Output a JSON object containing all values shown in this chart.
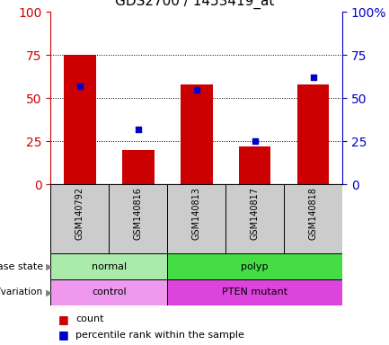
{
  "title": "GDS2700 / 1453419_at",
  "samples": [
    "GSM140792",
    "GSM140816",
    "GSM140813",
    "GSM140817",
    "GSM140818"
  ],
  "counts": [
    75,
    20,
    58,
    22,
    58
  ],
  "percentiles": [
    57,
    32,
    55,
    25,
    62
  ],
  "ylim_left": [
    0,
    100
  ],
  "ylim_right": [
    0,
    100
  ],
  "left_yticks": [
    0,
    25,
    50,
    75,
    100
  ],
  "right_yticks": [
    0,
    25,
    50,
    75,
    100
  ],
  "right_yticklabels": [
    "0",
    "25",
    "50",
    "75",
    "100%"
  ],
  "bar_color": "#cc0000",
  "marker_color": "#0000cc",
  "disease_state_groups": [
    {
      "label": "normal",
      "start": 0,
      "end": 1,
      "color": "#aaeaaa"
    },
    {
      "label": "polyp",
      "start": 2,
      "end": 4,
      "color": "#44dd44"
    }
  ],
  "genotype_groups": [
    {
      "label": "control",
      "start": 0,
      "end": 1,
      "color": "#ee99ee"
    },
    {
      "label": "PTEN mutant",
      "start": 2,
      "end": 4,
      "color": "#dd44dd"
    }
  ],
  "left_axis_color": "#cc0000",
  "right_axis_color": "#0000cc",
  "grid_yticks": [
    25,
    50,
    75
  ]
}
